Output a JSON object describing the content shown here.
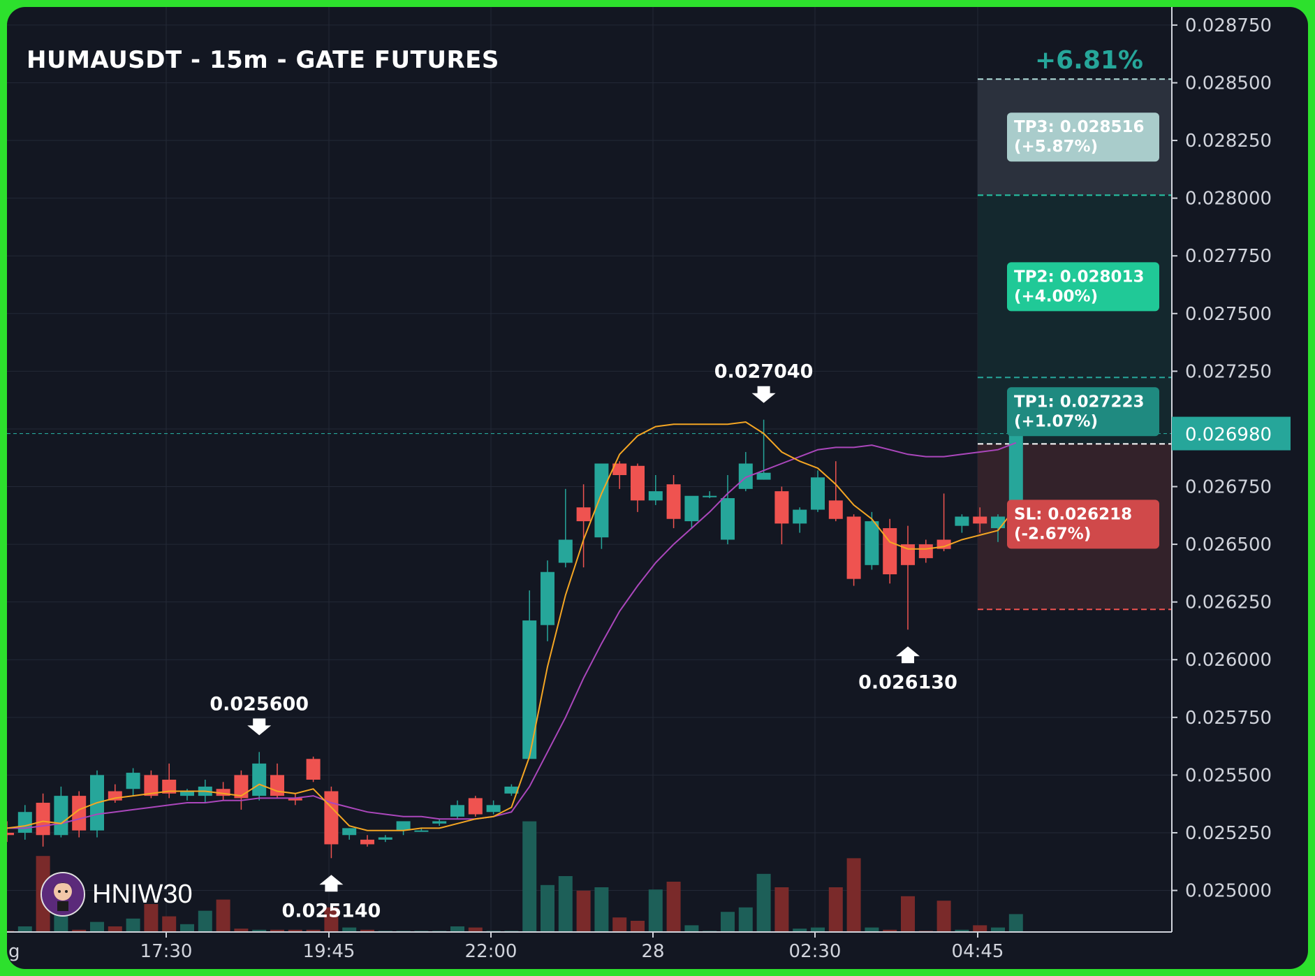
{
  "header": {
    "title": "HUMAUSDT - 15m - GATE FUTURES",
    "pnl": "+6.81%"
  },
  "brand": {
    "name": "HNIW30"
  },
  "colors": {
    "background": "#131722",
    "up": "#26a69a",
    "down": "#ef5350",
    "ema_fast": "#f5a623",
    "ema_slow": "#ab47bc",
    "frame": "#2de02d"
  },
  "chart_data": {
    "type": "candlestick",
    "symbol": "HUMAUSDT",
    "timeframe": "15m",
    "exchange": "GATE FUTURES",
    "x_tick_labels": [
      "g",
      "17:30",
      "19:45",
      "22:00",
      "28",
      "02:30",
      "04:45"
    ],
    "y_tick_labels": [
      "0.028750",
      "0.028500",
      "0.028250",
      "0.028000",
      "0.027750",
      "0.027500",
      "0.027250",
      "0.026750",
      "0.026500",
      "0.026250",
      "0.026000",
      "0.025750",
      "0.025500",
      "0.025250",
      "0.025000"
    ],
    "ylim": [
      0.02482,
      0.02878
    ],
    "grid": true,
    "last_price": "0.026980",
    "candles": [
      {
        "o": 0.02525,
        "h": 0.0253,
        "l": 0.02521,
        "c": 0.02524
      },
      {
        "o": 0.02525,
        "h": 0.02537,
        "l": 0.02522,
        "c": 0.02534
      },
      {
        "o": 0.02538,
        "h": 0.02542,
        "l": 0.02519,
        "c": 0.02524
      },
      {
        "o": 0.02524,
        "h": 0.02545,
        "l": 0.02523,
        "c": 0.02541
      },
      {
        "o": 0.02541,
        "h": 0.02543,
        "l": 0.02523,
        "c": 0.02526
      },
      {
        "o": 0.02526,
        "h": 0.02552,
        "l": 0.02523,
        "c": 0.0255
      },
      {
        "o": 0.02543,
        "h": 0.02546,
        "l": 0.02538,
        "c": 0.02539
      },
      {
        "o": 0.02544,
        "h": 0.02553,
        "l": 0.02541,
        "c": 0.02551
      },
      {
        "o": 0.0255,
        "h": 0.02552,
        "l": 0.0254,
        "c": 0.02541
      },
      {
        "o": 0.02548,
        "h": 0.02555,
        "l": 0.0254,
        "c": 0.02542
      },
      {
        "o": 0.02541,
        "h": 0.02544,
        "l": 0.02539,
        "c": 0.02543
      },
      {
        "o": 0.02541,
        "h": 0.02548,
        "l": 0.02538,
        "c": 0.02545
      },
      {
        "o": 0.02544,
        "h": 0.02547,
        "l": 0.02539,
        "c": 0.02541
      },
      {
        "o": 0.0255,
        "h": 0.02552,
        "l": 0.02535,
        "c": 0.0254
      },
      {
        "o": 0.02541,
        "h": 0.0256,
        "l": 0.02539,
        "c": 0.02555
      },
      {
        "o": 0.0255,
        "h": 0.02555,
        "l": 0.0254,
        "c": 0.02541
      },
      {
        "o": 0.0254,
        "h": 0.02542,
        "l": 0.02537,
        "c": 0.02539
      },
      {
        "o": 0.02557,
        "h": 0.02558,
        "l": 0.02547,
        "c": 0.02548
      },
      {
        "o": 0.02543,
        "h": 0.02545,
        "l": 0.02514,
        "c": 0.0252
      },
      {
        "o": 0.02524,
        "h": 0.02527,
        "l": 0.02522,
        "c": 0.02527
      },
      {
        "o": 0.02522,
        "h": 0.02524,
        "l": 0.02519,
        "c": 0.0252
      },
      {
        "o": 0.02522,
        "h": 0.02524,
        "l": 0.02521,
        "c": 0.02523
      },
      {
        "o": 0.02526,
        "h": 0.02529,
        "l": 0.02524,
        "c": 0.0253
      },
      {
        "o": 0.02526,
        "h": 0.02527,
        "l": 0.02526,
        "c": 0.02526
      },
      {
        "o": 0.02529,
        "h": 0.02531,
        "l": 0.02528,
        "c": 0.0253
      },
      {
        "o": 0.02532,
        "h": 0.02539,
        "l": 0.02531,
        "c": 0.02537
      },
      {
        "o": 0.0254,
        "h": 0.02541,
        "l": 0.02532,
        "c": 0.02533
      },
      {
        "o": 0.02534,
        "h": 0.02539,
        "l": 0.02533,
        "c": 0.02537
      },
      {
        "o": 0.02542,
        "h": 0.02546,
        "l": 0.02541,
        "c": 0.02545
      },
      {
        "o": 0.02557,
        "h": 0.0263,
        "l": 0.02557,
        "c": 0.02617
      },
      {
        "o": 0.02615,
        "h": 0.02643,
        "l": 0.02608,
        "c": 0.02638
      },
      {
        "o": 0.02642,
        "h": 0.02674,
        "l": 0.0264,
        "c": 0.02652
      },
      {
        "o": 0.02666,
        "h": 0.02676,
        "l": 0.0264,
        "c": 0.0266
      },
      {
        "o": 0.02653,
        "h": 0.02685,
        "l": 0.02648,
        "c": 0.02685
      },
      {
        "o": 0.02685,
        "h": 0.02686,
        "l": 0.02674,
        "c": 0.0268
      },
      {
        "o": 0.02684,
        "h": 0.02685,
        "l": 0.02664,
        "c": 0.02669
      },
      {
        "o": 0.02669,
        "h": 0.0268,
        "l": 0.02667,
        "c": 0.02673
      },
      {
        "o": 0.02676,
        "h": 0.0268,
        "l": 0.02657,
        "c": 0.02661
      },
      {
        "o": 0.0266,
        "h": 0.0267,
        "l": 0.02657,
        "c": 0.02671
      },
      {
        "o": 0.02671,
        "h": 0.02673,
        "l": 0.0267,
        "c": 0.02671
      },
      {
        "o": 0.02652,
        "h": 0.0268,
        "l": 0.0265,
        "c": 0.0267
      },
      {
        "o": 0.02674,
        "h": 0.0269,
        "l": 0.02673,
        "c": 0.02685
      },
      {
        "o": 0.02678,
        "h": 0.02704,
        "l": 0.02678,
        "c": 0.02681
      },
      {
        "o": 0.02673,
        "h": 0.02675,
        "l": 0.0265,
        "c": 0.02659
      },
      {
        "o": 0.02659,
        "h": 0.02666,
        "l": 0.02655,
        "c": 0.02665
      },
      {
        "o": 0.02665,
        "h": 0.02682,
        "l": 0.02664,
        "c": 0.02679
      },
      {
        "o": 0.02669,
        "h": 0.02686,
        "l": 0.0266,
        "c": 0.02661
      },
      {
        "o": 0.02662,
        "h": 0.02663,
        "l": 0.02632,
        "c": 0.02635
      },
      {
        "o": 0.02641,
        "h": 0.02664,
        "l": 0.02639,
        "c": 0.0266
      },
      {
        "o": 0.02657,
        "h": 0.02661,
        "l": 0.02633,
        "c": 0.02637
      },
      {
        "o": 0.0265,
        "h": 0.02658,
        "l": 0.02613,
        "c": 0.02641
      },
      {
        "o": 0.0265,
        "h": 0.02652,
        "l": 0.02642,
        "c": 0.02644
      },
      {
        "o": 0.02652,
        "h": 0.02672,
        "l": 0.02647,
        "c": 0.02648
      },
      {
        "o": 0.02658,
        "h": 0.02663,
        "l": 0.02655,
        "c": 0.02662
      },
      {
        "o": 0.02662,
        "h": 0.02666,
        "l": 0.02655,
        "c": 0.02659
      },
      {
        "o": 0.02657,
        "h": 0.02663,
        "l": 0.02651,
        "c": 0.02662
      },
      {
        "o": 0.02662,
        "h": 0.02707,
        "l": 0.0266,
        "c": 0.02698
      }
    ],
    "volume_color_note": "volume bars colored by candle direction",
    "volumes": [
      0.01,
      0.05,
      0.68,
      0.48,
      0.02,
      0.09,
      0.05,
      0.12,
      0.25,
      0.14,
      0.07,
      0.19,
      0.29,
      0.03,
      0.02,
      0.02,
      0.02,
      0.02,
      0.22,
      0.04,
      0.02,
      0.01,
      0.01,
      0.01,
      0.01,
      0.05,
      0.04,
      0.01,
      0.01,
      0.99,
      0.42,
      0.5,
      0.37,
      0.4,
      0.13,
      0.1,
      0.38,
      0.45,
      0.06,
      0.01,
      0.18,
      0.22,
      0.52,
      0.4,
      0.03,
      0.04,
      0.4,
      0.66,
      0.04,
      0.02,
      0.32,
      0.01,
      0.28,
      0.02,
      0.06,
      0.04,
      0.16
    ],
    "ema_fast": [
      0.02527,
      0.02528,
      0.0253,
      0.02529,
      0.02535,
      0.02538,
      0.0254,
      0.02541,
      0.02542,
      0.02543,
      0.02543,
      0.02543,
      0.02542,
      0.02541,
      0.02546,
      0.02543,
      0.02542,
      0.02544,
      0.02536,
      0.02528,
      0.02526,
      0.02526,
      0.02526,
      0.02527,
      0.02527,
      0.02529,
      0.02531,
      0.02532,
      0.02536,
      0.02558,
      0.02597,
      0.02628,
      0.02652,
      0.02672,
      0.02689,
      0.02697,
      0.02701,
      0.02702,
      0.02702,
      0.02702,
      0.02702,
      0.02703,
      0.02698,
      0.0269,
      0.02686,
      0.02683,
      0.02676,
      0.02667,
      0.02661,
      0.02651,
      0.02648,
      0.02648,
      0.02649,
      0.02652,
      0.02654,
      0.02656,
      0.02666
    ],
    "ema_slow": [
      0.02527,
      0.02527,
      0.02528,
      0.02529,
      0.02531,
      0.02533,
      0.02534,
      0.02535,
      0.02536,
      0.02537,
      0.02538,
      0.02538,
      0.02539,
      0.02539,
      0.0254,
      0.0254,
      0.0254,
      0.02541,
      0.02538,
      0.02536,
      0.02534,
      0.02533,
      0.02532,
      0.02532,
      0.02531,
      0.02531,
      0.02531,
      0.02532,
      0.02534,
      0.02545,
      0.0256,
      0.02575,
      0.02592,
      0.02607,
      0.02621,
      0.02632,
      0.02642,
      0.0265,
      0.02657,
      0.02664,
      0.02672,
      0.02679,
      0.02682,
      0.02685,
      0.02688,
      0.02691,
      0.02692,
      0.02692,
      0.02693,
      0.02691,
      0.02689,
      0.02688,
      0.02688,
      0.02689,
      0.0269,
      0.02691,
      0.02694
    ],
    "annotations": [
      {
        "label": "0.025600",
        "direction": "down",
        "candle": 14,
        "price": 0.0256
      },
      {
        "label": "0.025140",
        "direction": "up",
        "candle": 18,
        "price": 0.02514
      },
      {
        "label": "0.027040",
        "direction": "down",
        "candle": 42,
        "price": 0.02704
      },
      {
        "label": "0.026130",
        "direction": "up",
        "candle": 50,
        "price": 0.02613
      }
    ],
    "levels": [
      {
        "name": "TP3",
        "price": 0.028516,
        "label_line1": "TP3: 0.028516",
        "label_line2": "(+5.87%)",
        "color": "#b2dfdb"
      },
      {
        "name": "TP2",
        "price": 0.028013,
        "label_line1": "TP2: 0.028013",
        "label_line2": "(+4.00%)",
        "color": "#20c997"
      },
      {
        "name": "TP1",
        "price": 0.027223,
        "label_line1": "TP1: 0.027223",
        "label_line2": "(+1.07%)",
        "color": "#1f8f86"
      },
      {
        "name": "Entry",
        "price": 0.026935,
        "color": "#ffffff"
      },
      {
        "name": "SL",
        "price": 0.026218,
        "label_line1": "SL: 0.026218",
        "label_line2": "(-2.67%)",
        "color": "#d9534f"
      }
    ]
  }
}
